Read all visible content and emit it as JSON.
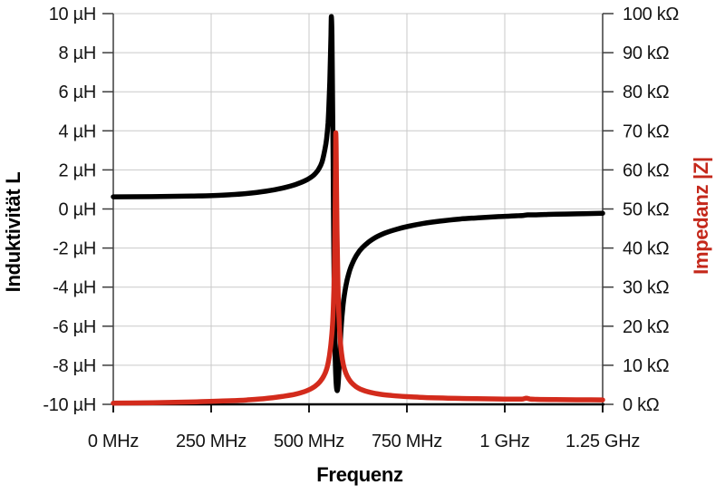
{
  "chart_data": {
    "type": "line",
    "xlabel": "Frequenz",
    "ylabel_left": "Induktivität L",
    "ylabel_right": "Impedanz |Z|",
    "grid": true,
    "legend": "none",
    "x_axis": {
      "unit": "MHz",
      "range_mhz": [
        0,
        1250
      ],
      "ticks": [
        {
          "mhz": 0,
          "label": "0 MHz"
        },
        {
          "mhz": 250,
          "label": "250 MHz"
        },
        {
          "mhz": 500,
          "label": "500 MHz"
        },
        {
          "mhz": 750,
          "label": "750 MHz"
        },
        {
          "mhz": 1000,
          "label": "1 GHz"
        },
        {
          "mhz": 1250,
          "label": "1.25 GHz"
        }
      ]
    },
    "y_left_axis": {
      "unit": "µH",
      "range": [
        -10,
        10
      ],
      "ticks": [
        {
          "value": 10,
          "label": "10 µH"
        },
        {
          "value": 8,
          "label": "8 µH"
        },
        {
          "value": 6,
          "label": "6 µH"
        },
        {
          "value": 4,
          "label": "4 µH"
        },
        {
          "value": 2,
          "label": "2 µH"
        },
        {
          "value": 0,
          "label": "0 µH"
        },
        {
          "value": -2,
          "label": "-2 µH"
        },
        {
          "value": -4,
          "label": "-4 µH"
        },
        {
          "value": -6,
          "label": "-6 µH"
        },
        {
          "value": -8,
          "label": "-8 µH"
        },
        {
          "value": -10,
          "label": "-10 µH"
        }
      ]
    },
    "y_right_axis": {
      "unit": "kΩ",
      "range": [
        0,
        100
      ],
      "ticks": [
        {
          "value": 100,
          "label": "100 kΩ"
        },
        {
          "value": 90,
          "label": "90 kΩ"
        },
        {
          "value": 80,
          "label": "80 kΩ"
        },
        {
          "value": 70,
          "label": "70 kΩ"
        },
        {
          "value": 60,
          "label": "60 kΩ"
        },
        {
          "value": 50,
          "label": "50 kΩ"
        },
        {
          "value": 40,
          "label": "40 kΩ"
        },
        {
          "value": 30,
          "label": "30 kΩ"
        },
        {
          "value": 20,
          "label": "20 kΩ"
        },
        {
          "value": 10,
          "label": "10 kΩ"
        },
        {
          "value": 0,
          "label": "0 kΩ"
        }
      ]
    },
    "series": [
      {
        "name": "Induktivität L",
        "axis": "left",
        "x_unit": "MHz",
        "y_unit": "µH",
        "color": "#000000",
        "points": [
          [
            0,
            0.62
          ],
          [
            100,
            0.63
          ],
          [
            200,
            0.66
          ],
          [
            280,
            0.71
          ],
          [
            340,
            0.79
          ],
          [
            390,
            0.91
          ],
          [
            430,
            1.06
          ],
          [
            465,
            1.25
          ],
          [
            495,
            1.5
          ],
          [
            513,
            1.75
          ],
          [
            525,
            2.05
          ],
          [
            533,
            2.4
          ],
          [
            540,
            3.0
          ],
          [
            545,
            3.6
          ],
          [
            548.5,
            4.4
          ],
          [
            551,
            5.4
          ],
          [
            553,
            6.5
          ],
          [
            554.5,
            7.6
          ],
          [
            556,
            8.9
          ],
          [
            557,
            9.85
          ],
          [
            558.5,
            8.9
          ],
          [
            560,
            6.0
          ],
          [
            561.5,
            2.5
          ],
          [
            563,
            -1.5
          ],
          [
            564.5,
            -4.8
          ],
          [
            566.5,
            -7.3
          ],
          [
            569,
            -8.8
          ],
          [
            572,
            -9.3
          ],
          [
            575,
            -8.8
          ],
          [
            578,
            -7.6
          ],
          [
            582,
            -6.1
          ],
          [
            587,
            -4.9
          ],
          [
            594,
            -3.95
          ],
          [
            603,
            -3.2
          ],
          [
            615,
            -2.6
          ],
          [
            629,
            -2.15
          ],
          [
            647,
            -1.78
          ],
          [
            668,
            -1.48
          ],
          [
            693,
            -1.24
          ],
          [
            722,
            -1.05
          ],
          [
            755,
            -0.88
          ],
          [
            792,
            -0.74
          ],
          [
            835,
            -0.62
          ],
          [
            882,
            -0.52
          ],
          [
            932,
            -0.45
          ],
          [
            985,
            -0.39
          ],
          [
            1030,
            -0.35
          ],
          [
            1048,
            -0.33
          ],
          [
            1058,
            -0.3
          ],
          [
            1075,
            -0.3
          ],
          [
            1110,
            -0.28
          ],
          [
            1155,
            -0.26
          ],
          [
            1200,
            -0.24
          ],
          [
            1250,
            -0.22
          ]
        ]
      },
      {
        "name": "Impedanz |Z|",
        "axis": "right",
        "x_unit": "MHz",
        "y_unit": "kΩ",
        "color": "#d32b1c",
        "points": [
          [
            0,
            0.3
          ],
          [
            100,
            0.42
          ],
          [
            200,
            0.6
          ],
          [
            280,
            0.85
          ],
          [
            340,
            1.12
          ],
          [
            390,
            1.5
          ],
          [
            430,
            2.0
          ],
          [
            465,
            2.6
          ],
          [
            495,
            3.5
          ],
          [
            515,
            4.6
          ],
          [
            528,
            5.8
          ],
          [
            538,
            7.3
          ],
          [
            545,
            9.0
          ],
          [
            550,
            11.2
          ],
          [
            554,
            13.8
          ],
          [
            557,
            16.5
          ],
          [
            559.5,
            19.5
          ],
          [
            561.5,
            23.5
          ],
          [
            563.5,
            29
          ],
          [
            565,
            36
          ],
          [
            566.5,
            48
          ],
          [
            567.5,
            60
          ],
          [
            568.3,
            69.5
          ],
          [
            569.2,
            66
          ],
          [
            570.2,
            56
          ],
          [
            571.5,
            44
          ],
          [
            573.5,
            32
          ],
          [
            576,
            23.5
          ],
          [
            579,
            17.5
          ],
          [
            583,
            13
          ],
          [
            588,
            10
          ],
          [
            594,
            8
          ],
          [
            602,
            6.4
          ],
          [
            612,
            5.2
          ],
          [
            625,
            4.2
          ],
          [
            641,
            3.5
          ],
          [
            660,
            3.0
          ],
          [
            684,
            2.55
          ],
          [
            712,
            2.25
          ],
          [
            745,
            2.0
          ],
          [
            783,
            1.8
          ],
          [
            826,
            1.65
          ],
          [
            875,
            1.52
          ],
          [
            928,
            1.43
          ],
          [
            985,
            1.37
          ],
          [
            1030,
            1.33
          ],
          [
            1046,
            1.38
          ],
          [
            1055,
            1.55
          ],
          [
            1064,
            1.38
          ],
          [
            1082,
            1.28
          ],
          [
            1130,
            1.22
          ],
          [
            1190,
            1.17
          ],
          [
            1250,
            1.13
          ]
        ]
      }
    ],
    "readings": {
      "inductance_peak_uH": 9.9,
      "inductance_dip_uH": -9.3,
      "impedance_peak_kohm": 70,
      "resonance_mhz": 570
    }
  },
  "colors": {
    "inductance_curve": "#000000",
    "impedance_curve": "#d32b1c",
    "impedance_label": "#c4281b",
    "gridline": "#c9c9c9",
    "side_axis": "#3d3d3d",
    "bottom_axis": "#000000",
    "tick_text": "#141414"
  }
}
